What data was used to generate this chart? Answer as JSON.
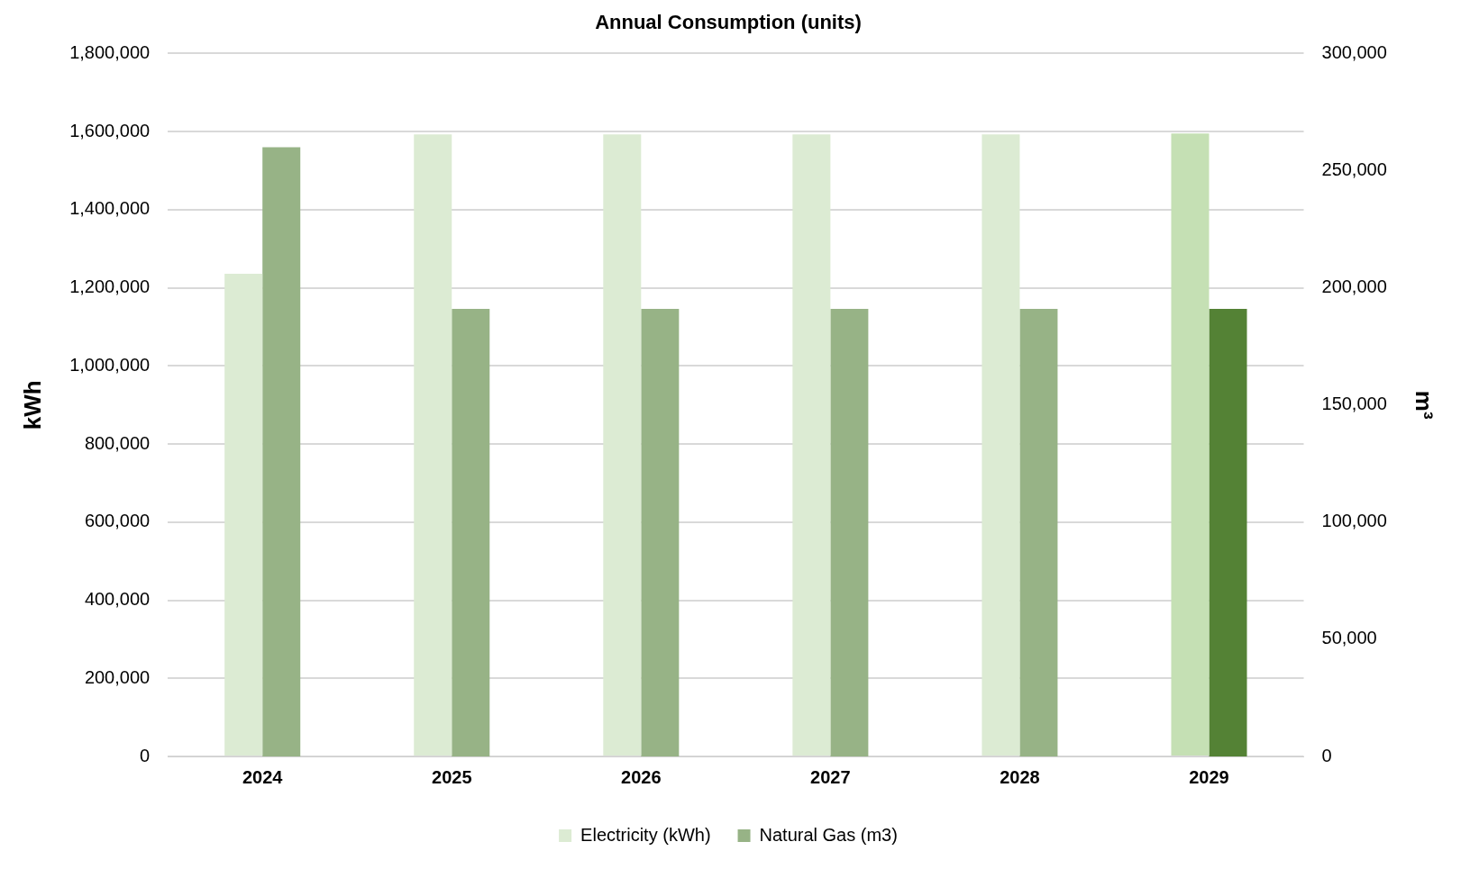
{
  "chart_data": {
    "type": "bar",
    "title": "Annual Consumption (units)",
    "ylabel": "kWh",
    "y2label": "m³",
    "categories": [
      "2024",
      "2025",
      "2026",
      "2027",
      "2028",
      "2029"
    ],
    "series": [
      {
        "name": "Electricity (kWh)",
        "color": "#dcebd3",
        "colors": [
          "#dcebd3",
          "#dcebd3",
          "#dcebd3",
          "#dcebd3",
          "#dcebd3",
          "#c5e0b4"
        ],
        "values": [
          1236000,
          1593000,
          1593000,
          1593000,
          1593000,
          1595000
        ]
      },
      {
        "name": "Natural Gas (m3)",
        "color": "#97b386",
        "colors": [
          "#97b386",
          "#97b386",
          "#97b386",
          "#97b386",
          "#97b386",
          "#548235"
        ],
        "values": [
          260000,
          191000,
          191000,
          191000,
          191000,
          191000
        ],
        "axis": "y2"
      }
    ],
    "ylim": [
      0,
      1800000
    ],
    "yticks": [
      0,
      {
        "value": 200000,
        "label": "200,000"
      },
      {
        "value": 400000,
        "label": "400,000"
      },
      {
        "value": 600000,
        "label": "600,000"
      },
      {
        "value": 800000,
        "label": "800,000"
      },
      {
        "value": 1000000,
        "label": "1,000,000"
      },
      {
        "value": 1200000,
        "label": "1,200,000"
      },
      {
        "value": 1400000,
        "label": "1,400,000"
      },
      {
        "value": 1600000,
        "label": "1,600,000"
      },
      {
        "value": 1800000,
        "label": "1,800,000"
      }
    ],
    "y2lim": [
      0,
      300000
    ],
    "y2ticks": [
      0,
      {
        "value": 50000,
        "label": "50,000"
      },
      {
        "value": 100000,
        "label": "100,000"
      },
      {
        "value": 150000,
        "label": "150,000"
      },
      {
        "value": 200000,
        "label": "200,000"
      },
      {
        "value": 250000,
        "label": "250,000"
      },
      {
        "value": 300000,
        "label": "300,000"
      }
    ],
    "grid": "y",
    "legend": "bottom"
  }
}
